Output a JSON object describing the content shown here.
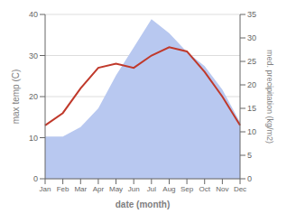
{
  "chart_data": {
    "type": "line",
    "categories": [
      "Jan",
      "Feb",
      "Mar",
      "Apr",
      "May",
      "Jun",
      "Jul",
      "Aug",
      "Sep",
      "Oct",
      "Nov",
      "Dec"
    ],
    "series": [
      {
        "type": "area",
        "axis": "y2",
        "color": "#b8c8f0",
        "values": [
          9,
          9,
          11,
          15,
          22,
          28,
          34,
          31,
          27,
          24,
          19,
          12
        ]
      },
      {
        "type": "line",
        "color": "#c0392b",
        "values": [
          13,
          16,
          22,
          27,
          28,
          27,
          30,
          32,
          31,
          26,
          20,
          13
        ]
      }
    ],
    "xlabel": "date (month)",
    "ylabel": "max temp (C)",
    "y2label": "med. precipitation (kg/m2)",
    "ylim": [
      0,
      40
    ],
    "yticks": [
      0,
      10,
      20,
      30,
      40
    ],
    "y2lim": [
      0,
      35
    ],
    "y2ticks": [
      0,
      5,
      10,
      15,
      20,
      25,
      30,
      35
    ],
    "grid": true
  }
}
